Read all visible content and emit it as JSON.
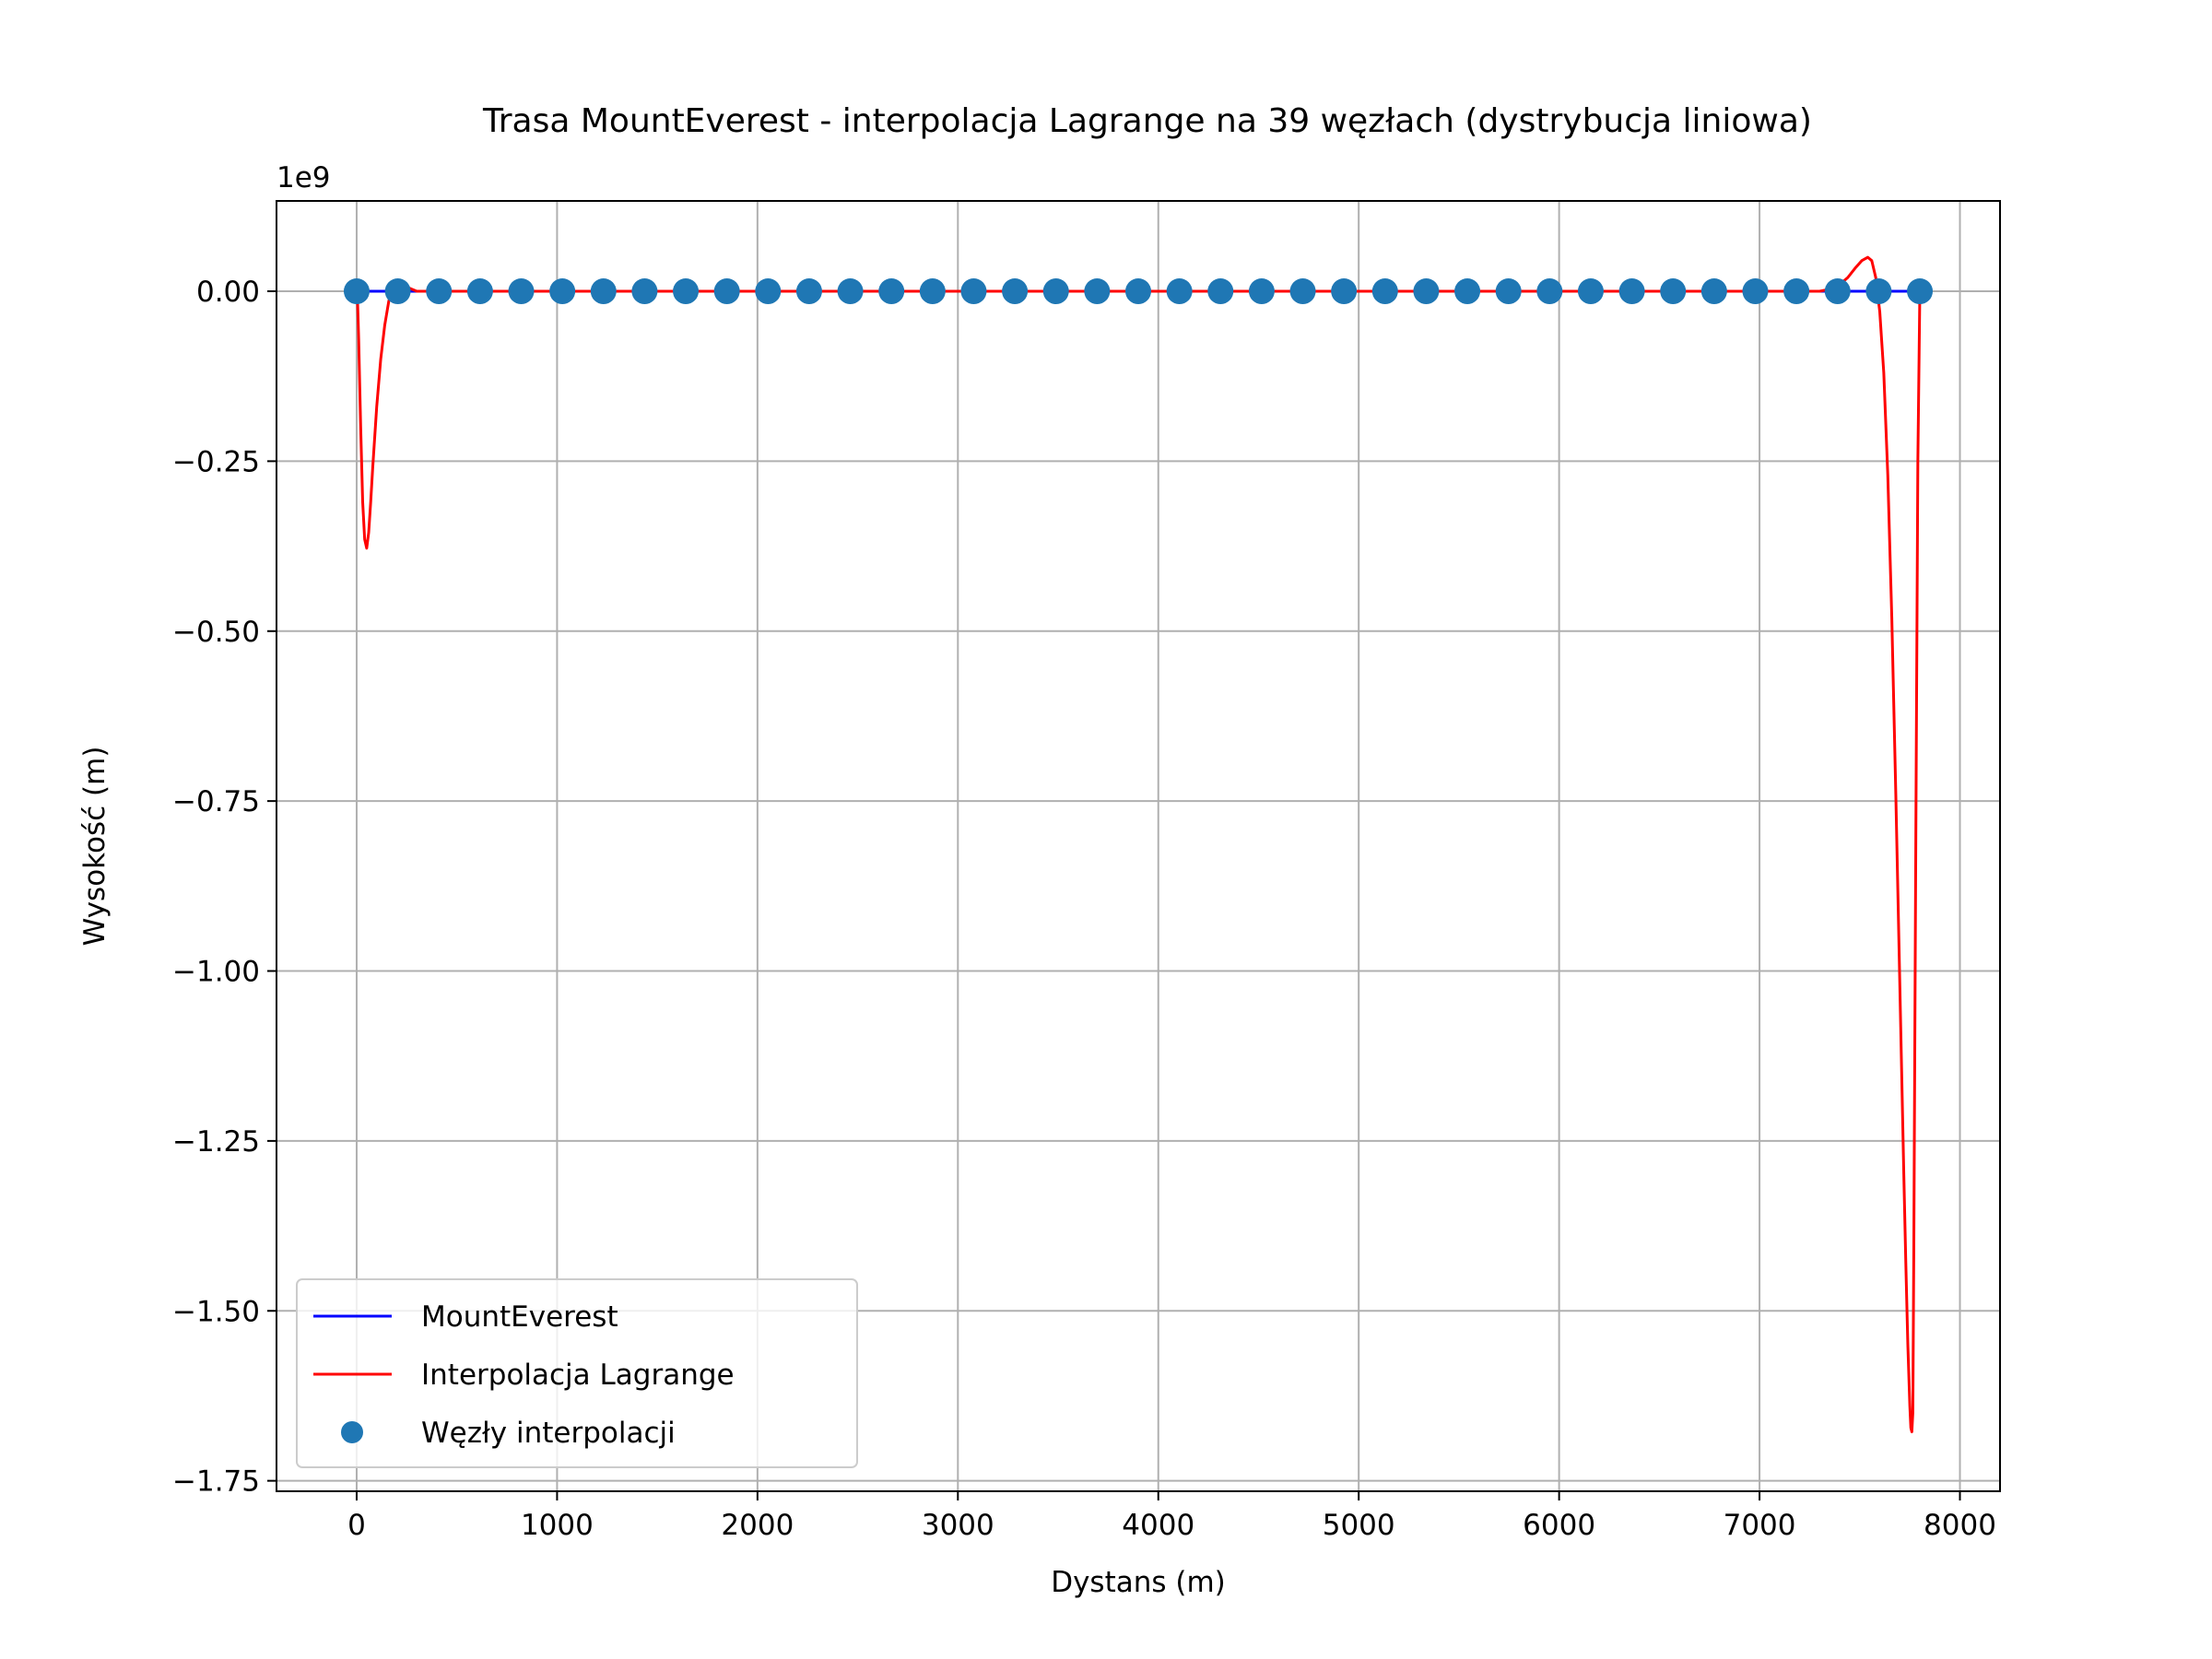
{
  "chart_data": {
    "type": "line",
    "title": "Trasa MountEverest - interpolacja Lagrange na 39 węzłach (dystrybucja liniowa)",
    "xlabel": "Dystans (m)",
    "ylabel": "Wysokość (m)",
    "y_offset_label": "1e9",
    "y_scale_factor": 1000000000,
    "xlim": [
      -400,
      8200
    ],
    "ylim": [
      -1.7654,
      0.1329
    ],
    "x_ticks": [
      0,
      1000,
      2000,
      3000,
      4000,
      5000,
      6000,
      7000,
      8000
    ],
    "x_tick_labels": [
      "0",
      "1000",
      "2000",
      "3000",
      "4000",
      "5000",
      "6000",
      "7000",
      "8000"
    ],
    "y_ticks": [
      0.0,
      -0.25,
      -0.5,
      -0.75,
      -1.0,
      -1.25,
      -1.5,
      -1.75
    ],
    "y_tick_labels": [
      "0.00",
      "−0.25",
      "−0.50",
      "−0.75",
      "−1.00",
      "−1.25",
      "−1.50",
      "−1.75"
    ],
    "grid": true,
    "legend_position": "lower-left",
    "series": [
      {
        "name": "MountEverest",
        "kind": "line",
        "color": "#0000ff",
        "x": [
          0,
          7800
        ],
        "y": [
          0.0,
          0.0
        ]
      },
      {
        "name": "Interpolacja Lagrange",
        "kind": "line",
        "color": "#ff0000",
        "x": [
          0,
          5,
          10,
          20,
          30,
          40,
          50,
          60,
          70,
          80,
          100,
          120,
          140,
          160,
          180,
          200,
          230,
          260,
          300,
          400,
          1000,
          3000,
          5000,
          7000,
          7200,
          7300,
          7350,
          7400,
          7440,
          7480,
          7510,
          7540,
          7560,
          7580,
          7600,
          7620,
          7640,
          7660,
          7680,
          7700,
          7720,
          7730,
          7740,
          7750,
          7755,
          7760,
          7765,
          7770,
          7780,
          7790,
          7800
        ],
        "y": [
          0.0,
          -0.02,
          -0.07,
          -0.2,
          -0.31,
          -0.365,
          -0.378,
          -0.355,
          -0.31,
          -0.26,
          -0.17,
          -0.1,
          -0.05,
          -0.015,
          0.005,
          0.014,
          0.01,
          0.005,
          0.0,
          0.0,
          0.0,
          0.0,
          0.0,
          0.0,
          0.0,
          0.0,
          0.003,
          0.01,
          0.02,
          0.035,
          0.045,
          0.05,
          0.045,
          0.02,
          -0.03,
          -0.12,
          -0.27,
          -0.48,
          -0.74,
          -1.02,
          -1.3,
          -1.43,
          -1.55,
          -1.64,
          -1.672,
          -1.678,
          -1.65,
          -1.4,
          -0.8,
          -0.25,
          0.0
        ]
      },
      {
        "name": "Węzły interpolacji",
        "kind": "scatter",
        "color": "#1f77b4",
        "x": [
          0,
          205.3,
          410.5,
          615.8,
          821.1,
          1026.3,
          1231.6,
          1436.8,
          1642.1,
          1847.4,
          2052.6,
          2257.9,
          2463.2,
          2668.4,
          2873.7,
          3078.9,
          3284.2,
          3489.5,
          3694.7,
          3900.0,
          4105.3,
          4310.5,
          4515.8,
          4721.1,
          4926.3,
          5131.6,
          5336.8,
          5542.1,
          5747.4,
          5952.6,
          6157.9,
          6363.2,
          6568.4,
          6773.7,
          6978.9,
          7184.2,
          7389.5,
          7594.7,
          7800.0
        ],
        "y": [
          0,
          0,
          0,
          0,
          0,
          0,
          0,
          0,
          0,
          0,
          0,
          0,
          0,
          0,
          0,
          0,
          0,
          0,
          0,
          0,
          0,
          0,
          0,
          0,
          0,
          0,
          0,
          0,
          0,
          0,
          0,
          0,
          0,
          0,
          0,
          0,
          0,
          0,
          0
        ]
      }
    ]
  }
}
